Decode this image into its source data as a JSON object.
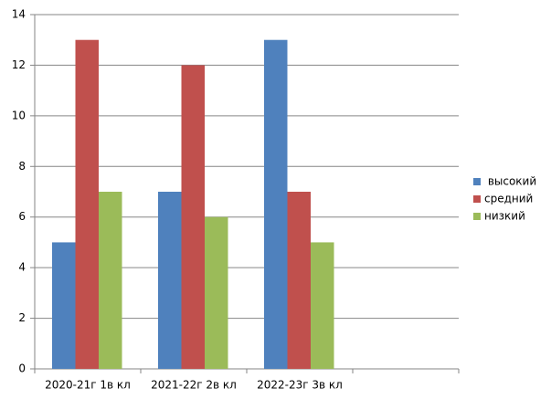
{
  "chart_data": {
    "type": "bar",
    "categories": [
      "2020-21г 1в кл",
      "2021-22г 2в кл",
      "2022-23г 3в кл",
      null
    ],
    "series": [
      {
        "name": " высокий",
        "color": "#4f81bd",
        "values": [
          5,
          7,
          13,
          null
        ]
      },
      {
        "name": "средний",
        "color": "#c0504d",
        "values": [
          13,
          12,
          7,
          null
        ]
      },
      {
        "name": "низкий",
        "color": "#9bbb59",
        "values": [
          7,
          6,
          5,
          null
        ]
      }
    ],
    "ylim": [
      0,
      14
    ],
    "yticks": [
      0,
      2,
      4,
      6,
      8,
      10,
      12,
      14
    ],
    "grid": true,
    "legend": "right"
  }
}
